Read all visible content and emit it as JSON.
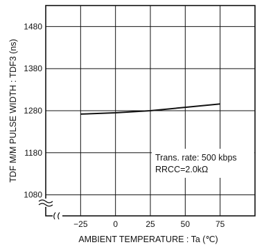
{
  "chart_data": {
    "type": "line",
    "xlabel": "AMBIENT TEMPERATURE : Ta (℃)",
    "ylabel": "TDF M/M PULSE WIDTH : TDF3 (ns)",
    "x_ticks": [
      "−25",
      "0",
      "25",
      "50",
      "75"
    ],
    "y_ticks": [
      "1080",
      "1180",
      "1280",
      "1380",
      "1480"
    ],
    "xlim": [
      -50,
      100
    ],
    "ylim": [
      1030,
      1530
    ],
    "axis_break": true,
    "grid": true,
    "series": [
      {
        "x": [
          -25,
          0,
          25,
          50,
          75
        ],
        "y": [
          1272,
          1275,
          1280,
          1288,
          1296
        ]
      }
    ],
    "annotations": [
      "Trans. rate: 500 kbps",
      "RRCC=2.0kΩ"
    ]
  }
}
